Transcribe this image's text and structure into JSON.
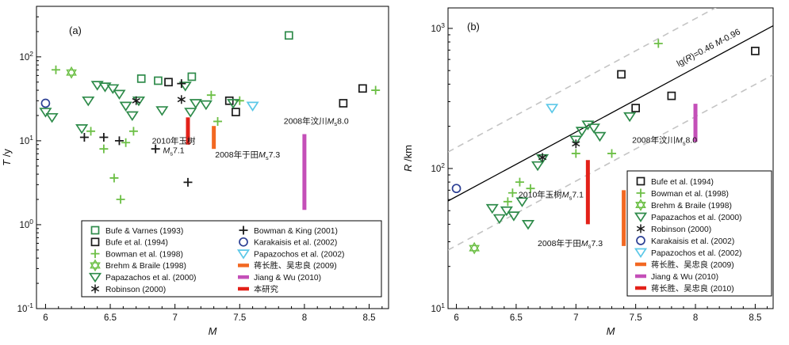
{
  "figure": {
    "background": "#ffffff"
  },
  "chart_data": [
    {
      "id": "a",
      "type": "scatter",
      "panel_label": "(a)",
      "xlabel": "M",
      "ylabel": "T /y",
      "xlim": [
        5.93,
        8.65
      ],
      "xticks": [
        6,
        6.5,
        7,
        7.5,
        8,
        8.5
      ],
      "ylog": true,
      "ylim": [
        0.1,
        400
      ],
      "ytick_exponents": [
        -1,
        0,
        1,
        2
      ],
      "grid": false,
      "legend": {
        "columns": 2,
        "position": "inside-bottom"
      },
      "series": [
        {
          "name": "Bufe & Varnes (1993)",
          "marker": "square",
          "color": "#2e8b4a",
          "points": [
            [
              6.74,
              55
            ],
            [
              6.87,
              52
            ],
            [
              7.13,
              58
            ],
            [
              7.88,
              180
            ]
          ]
        },
        {
          "name": "Bufe et al. (1994)",
          "marker": "square",
          "color": "#1a1a1a",
          "points": [
            [
              6.95,
              50
            ],
            [
              7.42,
              30
            ],
            [
              7.47,
              22
            ],
            [
              8.3,
              28
            ],
            [
              8.45,
              42
            ]
          ]
        },
        {
          "name": "Bowman et al. (1998)",
          "marker": "plus",
          "color": "#6cbf45",
          "points": [
            [
              6.08,
              70
            ],
            [
              6.35,
              13
            ],
            [
              6.45,
              8
            ],
            [
              6.53,
              3.6
            ],
            [
              6.58,
              2
            ],
            [
              6.62,
              9.5
            ],
            [
              6.68,
              13
            ],
            [
              7.28,
              35
            ],
            [
              7.33,
              17
            ],
            [
              7.5,
              30
            ],
            [
              8.55,
              40
            ]
          ]
        },
        {
          "name": "Brehm & Braile (1998)",
          "marker": "star",
          "color": "#6cbf45",
          "points": [
            [
              6.2,
              65
            ]
          ]
        },
        {
          "name": "Papazachos et al. (2000)",
          "marker": "triangle",
          "color": "#2e8b4a",
          "points": [
            [
              6.0,
              22
            ],
            [
              6.05,
              19
            ],
            [
              6.28,
              14
            ],
            [
              6.33,
              30
            ],
            [
              6.4,
              46
            ],
            [
              6.46,
              44
            ],
            [
              6.52,
              42
            ],
            [
              6.57,
              36
            ],
            [
              6.62,
              26
            ],
            [
              6.67,
              20
            ],
            [
              6.72,
              30
            ],
            [
              6.9,
              23
            ],
            [
              7.08,
              45
            ],
            [
              7.12,
              22
            ],
            [
              7.16,
              28
            ],
            [
              7.24,
              27
            ],
            [
              7.45,
              28
            ]
          ]
        },
        {
          "name": "Robinson (2000)",
          "marker": "asterisk",
          "color": "#1a1a1a",
          "points": [
            [
              6.7,
              30
            ],
            [
              7.05,
              31
            ]
          ]
        },
        {
          "name": "Bowman & King (2001)",
          "marker": "plus",
          "color": "#1a1a1a",
          "points": [
            [
              6.3,
              11
            ],
            [
              6.45,
              11
            ],
            [
              6.57,
              10
            ],
            [
              6.85,
              8
            ],
            [
              7.05,
              48
            ],
            [
              7.1,
              3.2
            ]
          ]
        },
        {
          "name": "Karakaisis et al. (2002)",
          "marker": "circle",
          "color": "#2c3f94",
          "points": [
            [
              6.0,
              28
            ]
          ]
        },
        {
          "name": "Papazochos et al. (2002)",
          "marker": "triangle",
          "color": "#5bc8e8",
          "points": [
            [
              7.6,
              26
            ]
          ]
        },
        {
          "name": "蒋长胜、吴忠良 (2009)",
          "marker": "vbar",
          "color": "#f26822",
          "label_color": "#f26822",
          "bars": [
            [
              7.3,
              8,
              15
            ]
          ]
        },
        {
          "name": "Jiang & Wu (2010)",
          "marker": "vbar",
          "color": "#c44fb8",
          "bars": [
            [
              8.0,
              1.5,
              12
            ]
          ]
        },
        {
          "name": "本研究",
          "marker": "vbar",
          "color": "#e32119",
          "label_color": "#e32119",
          "bars": [
            [
              7.1,
              9,
              19
            ]
          ]
        }
      ],
      "annotations": [
        {
          "lines": [
            "2010年玉树",
            "Ms7.1"
          ],
          "x": 6.99,
          "y": 9.2,
          "align": "middle"
        },
        {
          "text": "2008年于田Ms7.3",
          "x": 7.31,
          "y": 6.3,
          "align": "start"
        },
        {
          "text": "2008年汶川Ms8.0",
          "x": 7.84,
          "y": 16,
          "align": "start"
        }
      ]
    },
    {
      "id": "b",
      "type": "scatter",
      "panel_label": "(b)",
      "xlabel": "M",
      "ylabel": "R /km",
      "xlim": [
        5.93,
        8.65
      ],
      "xticks": [
        6,
        6.5,
        7,
        7.5,
        8,
        8.5
      ],
      "ylog": true,
      "ylim": [
        10,
        1400
      ],
      "ytick_exponents": [
        1,
        2,
        3
      ],
      "grid": false,
      "legend": {
        "columns": 1,
        "position": "inside-right-bottom"
      },
      "fit_line": {
        "label": "lg(R)=0.46 M-0.96",
        "slope": 0.46,
        "intercept": -0.96,
        "band_offset": 0.35,
        "label_pos": {
          "x": 8.12,
          "y": 700,
          "angle": -28
        }
      },
      "series": [
        {
          "name": "Bufe et al. (1994)",
          "marker": "square",
          "color": "#1a1a1a",
          "points": [
            [
              7.38,
              470
            ],
            [
              7.5,
              270
            ],
            [
              7.8,
              330
            ],
            [
              8.5,
              690
            ]
          ]
        },
        {
          "name": "Bowman et al. (1998)",
          "marker": "plus",
          "color": "#6cbf45",
          "points": [
            [
              6.43,
              58
            ],
            [
              6.47,
              67
            ],
            [
              6.53,
              80
            ],
            [
              6.62,
              72
            ],
            [
              7.0,
              128
            ],
            [
              7.3,
              128
            ],
            [
              7.69,
              780
            ]
          ]
        },
        {
          "name": "Brehm & Braile (1998)",
          "marker": "star",
          "color": "#6cbf45",
          "points": [
            [
              6.15,
              27
            ]
          ]
        },
        {
          "name": "Papazachos et al. (2000)",
          "marker": "triangle",
          "color": "#2e8b4a",
          "points": [
            [
              6.3,
              52
            ],
            [
              6.36,
              44
            ],
            [
              6.42,
              50
            ],
            [
              6.48,
              46
            ],
            [
              6.55,
              58
            ],
            [
              6.6,
              40
            ],
            [
              6.68,
              105
            ],
            [
              6.72,
              118
            ],
            [
              7.0,
              160
            ],
            [
              7.05,
              185
            ],
            [
              7.1,
              205
            ],
            [
              7.15,
              195
            ],
            [
              7.2,
              170
            ],
            [
              7.45,
              235
            ]
          ]
        },
        {
          "name": "Robinson (2000)",
          "marker": "asterisk",
          "color": "#1a1a1a",
          "points": [
            [
              6.72,
              120
            ],
            [
              7.0,
              150
            ]
          ]
        },
        {
          "name": "Karakaisis et al. (2002)",
          "marker": "circle",
          "color": "#2c3f94",
          "points": [
            [
              6.0,
              72
            ]
          ]
        },
        {
          "name": "Papazochos et al. (2002)",
          "marker": "triangle",
          "color": "#5bc8e8",
          "points": [
            [
              6.8,
              270
            ]
          ]
        },
        {
          "name": "蒋长胜、吴忠良 (2009)",
          "marker": "vbar",
          "color": "#f26822",
          "label_color": "#f26822",
          "bars": [
            [
              7.4,
              28,
              70
            ]
          ]
        },
        {
          "name": "Jiang & Wu (2010)",
          "marker": "vbar",
          "color": "#c44fb8",
          "bars": [
            [
              8.0,
              155,
              290
            ]
          ]
        },
        {
          "name": "蒋长胜、吴忠良 (2010)",
          "marker": "vbar",
          "color": "#e32119",
          "label_color": "#e32119",
          "bars": [
            [
              7.1,
              40,
              115
            ]
          ]
        }
      ],
      "annotations": [
        {
          "text": "2008年汶川Ms8.0",
          "x": 7.47,
          "y": 152,
          "align": "start"
        },
        {
          "text": "2010年玉树Ms7.1",
          "x": 6.52,
          "y": 62,
          "align": "start"
        },
        {
          "text": "2008年于田Ms7.3",
          "x": 6.68,
          "y": 28,
          "align": "start"
        }
      ]
    }
  ]
}
